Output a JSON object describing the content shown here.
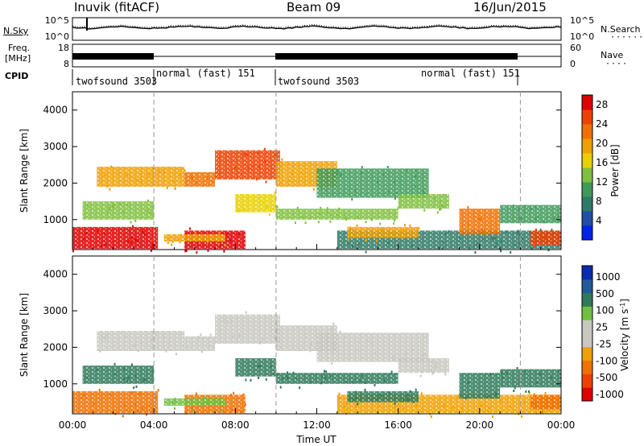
{
  "header": {
    "station": "Inuvik (fitACF)",
    "beam": "Beam 09",
    "date": "16/Jun/2015"
  },
  "side_labels": {
    "nsky": "N.Sky",
    "nsearch": "N.Search",
    "freq_line1": "Freq.",
    "freq_line2": "[MHz]",
    "nave": "Nave",
    "cpid": "CPID"
  },
  "noise_panel": {
    "left_ticks": [
      "10^5",
      "10^0"
    ],
    "right_ticks": [
      "10^5",
      "10^0"
    ]
  },
  "freq_panel": {
    "left_ticks": [
      "18",
      "8"
    ],
    "right_ticks": [
      "60",
      "0"
    ]
  },
  "cpid_segments": [
    {
      "label": "twofsound 3503",
      "start_hour": 0,
      "end_hour": 4
    },
    {
      "label": "normal (fast) 151",
      "start_hour": 4,
      "end_hour": 10
    },
    {
      "label": "twofsound 3503",
      "start_hour": 10,
      "end_hour": 18
    },
    {
      "label": "normal (fast) 151",
      "start_hour": 18,
      "end_hour": 22
    }
  ],
  "colors": {
    "power_scale": [
      "#0022ee",
      "#1f4fa8",
      "#2f7a66",
      "#3f9a5a",
      "#80c040",
      "#e8d000",
      "#f0a000",
      "#f07000",
      "#f04000",
      "#e00000"
    ],
    "velocity_scale": [
      "#e00000",
      "#f04000",
      "#f07000",
      "#f0a000",
      "#c8c8c0",
      "#c8c8c0",
      "#70c040",
      "#2f7a5a",
      "#1f5a9a",
      "#0a2ab0"
    ],
    "ground_scatter": "#b4b4b4"
  },
  "chart_data": [
    {
      "type": "heatmap",
      "panel": "power",
      "xlabel": "Time UT",
      "ylabel": "Slant Range [km]",
      "x_range_hours": [
        0,
        24
      ],
      "x_tick_labels": [
        "00:00",
        "04:00",
        "08:00",
        "12:00",
        "16:00",
        "20:00",
        "00:00"
      ],
      "y_range_km": [
        180,
        4500
      ],
      "y_tick_values": [
        1000,
        2000,
        3000,
        4000
      ],
      "colorbar_label": "Power [dB]",
      "colorbar_ticks": [
        4,
        8,
        12,
        16,
        20,
        24,
        28
      ],
      "colorbar_range": [
        0,
        30
      ],
      "scatter_regions": [
        {
          "t_start": 0.0,
          "t_end": 4.2,
          "r_min": 200,
          "r_max": 800,
          "value": 27
        },
        {
          "t_start": 0.5,
          "t_end": 4.0,
          "r_min": 1000,
          "r_max": 1500,
          "value": 14
        },
        {
          "t_start": 1.2,
          "t_end": 5.5,
          "r_min": 1900,
          "r_max": 2450,
          "value": 20
        },
        {
          "t_start": 5.5,
          "t_end": 8.5,
          "r_min": 200,
          "r_max": 700,
          "value": 29
        },
        {
          "t_start": 4.5,
          "t_end": 7.5,
          "r_min": 400,
          "r_max": 600,
          "value": 18
        },
        {
          "t_start": 5.5,
          "t_end": 7.0,
          "r_min": 1900,
          "r_max": 2300,
          "value": 22
        },
        {
          "t_start": 7.0,
          "t_end": 10.2,
          "r_min": 2100,
          "r_max": 2900,
          "value": 24
        },
        {
          "t_start": 8.0,
          "t_end": 10.0,
          "r_min": 1200,
          "r_max": 1700,
          "value": 15
        },
        {
          "t_start": 10.0,
          "t_end": 13.0,
          "r_min": 1900,
          "r_max": 2600,
          "value": 18
        },
        {
          "t_start": 10.0,
          "t_end": 16.0,
          "r_min": 1000,
          "r_max": 1300,
          "value": 12
        },
        {
          "t_start": 12.0,
          "t_end": 17.5,
          "r_min": 1600,
          "r_max": 2400,
          "value": 11
        },
        {
          "t_start": 13.0,
          "t_end": 24.0,
          "r_min": 200,
          "r_max": 700,
          "value": 8
        },
        {
          "t_start": 13.5,
          "t_end": 17.0,
          "r_min": 500,
          "r_max": 800,
          "value": 19
        },
        {
          "t_start": 16.0,
          "t_end": 18.5,
          "r_min": 1300,
          "r_max": 1700,
          "value": 13
        },
        {
          "t_start": 19.0,
          "t_end": 21.0,
          "r_min": 600,
          "r_max": 1300,
          "value": 21
        },
        {
          "t_start": 21.0,
          "t_end": 24.0,
          "r_min": 900,
          "r_max": 1400,
          "value": 10
        },
        {
          "t_start": 22.5,
          "t_end": 24.0,
          "r_min": 300,
          "r_max": 700,
          "value": 25
        }
      ]
    },
    {
      "type": "heatmap",
      "panel": "velocity",
      "xlabel": "Time UT",
      "ylabel": "Slant Range [km]",
      "x_range_hours": [
        0,
        24
      ],
      "x_tick_labels": [
        "00:00",
        "04:00",
        "08:00",
        "12:00",
        "16:00",
        "20:00",
        "00:00"
      ],
      "y_range_km": [
        180,
        4500
      ],
      "y_tick_values": [
        1000,
        2000,
        3000,
        4000
      ],
      "colorbar_label": "Velocity [m s^-1]",
      "colorbar_ticks": [
        "1000",
        "500",
        "100",
        "25",
        "-25",
        "-100",
        "-500",
        "-1000"
      ],
      "scatter_regions": [
        {
          "t_start": 0.0,
          "t_end": 4.2,
          "r_min": 200,
          "r_max": 800,
          "value": -300
        },
        {
          "t_start": 0.5,
          "t_end": 4.0,
          "r_min": 1000,
          "r_max": 1500,
          "value": 150
        },
        {
          "t_start": 1.2,
          "t_end": 5.5,
          "r_min": 1900,
          "r_max": 2450,
          "value": 5
        },
        {
          "t_start": 5.5,
          "t_end": 8.5,
          "r_min": 200,
          "r_max": 700,
          "value": -250
        },
        {
          "t_start": 4.5,
          "t_end": 7.5,
          "r_min": 400,
          "r_max": 600,
          "value": 80
        },
        {
          "t_start": 5.5,
          "t_end": 7.0,
          "r_min": 1900,
          "r_max": 2300,
          "value": 0
        },
        {
          "t_start": 7.0,
          "t_end": 10.2,
          "r_min": 2100,
          "r_max": 2900,
          "value": -10
        },
        {
          "t_start": 8.0,
          "t_end": 10.0,
          "r_min": 1200,
          "r_max": 1700,
          "value": 200
        },
        {
          "t_start": 10.0,
          "t_end": 13.0,
          "r_min": 1900,
          "r_max": 2600,
          "value": 5
        },
        {
          "t_start": 10.0,
          "t_end": 16.0,
          "r_min": 1000,
          "r_max": 1300,
          "value": 250
        },
        {
          "t_start": 12.0,
          "t_end": 17.5,
          "r_min": 1600,
          "r_max": 2400,
          "value": 0
        },
        {
          "t_start": 13.0,
          "t_end": 24.0,
          "r_min": 200,
          "r_max": 700,
          "value": -60
        },
        {
          "t_start": 13.5,
          "t_end": 17.0,
          "r_min": 500,
          "r_max": 800,
          "value": 120
        },
        {
          "t_start": 16.0,
          "t_end": 18.5,
          "r_min": 1300,
          "r_max": 1700,
          "value": 15
        },
        {
          "t_start": 19.0,
          "t_end": 21.0,
          "r_min": 600,
          "r_max": 1300,
          "value": 400
        },
        {
          "t_start": 21.0,
          "t_end": 24.0,
          "r_min": 900,
          "r_max": 1400,
          "value": 500
        },
        {
          "t_start": 22.5,
          "t_end": 24.0,
          "r_min": 300,
          "r_max": 700,
          "value": -400
        }
      ]
    }
  ]
}
